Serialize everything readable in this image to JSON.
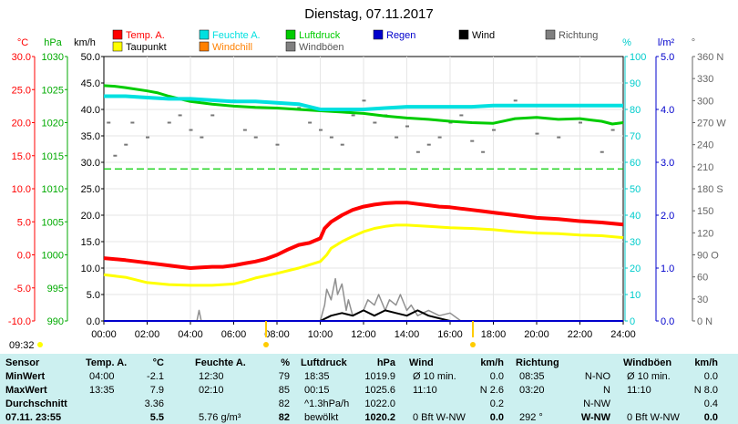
{
  "chart_data": {
    "type": "line",
    "title": "Dienstag, 07.11.2017",
    "time_label": "09:32",
    "x_ticks": [
      "00:00",
      "02:00",
      "04:00",
      "06:00",
      "08:00",
      "10:00",
      "12:00",
      "14:00",
      "16:00",
      "18:00",
      "20:00",
      "22:00",
      "24:00"
    ],
    "xlim_hours": [
      0,
      24
    ],
    "axes": {
      "temp": {
        "unit": "°C",
        "ticks": [
          "30.0",
          "25.0",
          "20.0",
          "15.0",
          "10.0",
          "5.0",
          "0.0",
          "-5.0",
          "-10.0"
        ],
        "range": [
          -10,
          30
        ],
        "color": "#ff0000"
      },
      "pressure": {
        "unit": "hPa",
        "ticks": [
          "1030",
          "1025",
          "1020",
          "1015",
          "1010",
          "1005",
          "1000",
          "995",
          "990"
        ],
        "range": [
          990,
          1030
        ],
        "color": "#00aa00"
      },
      "wind": {
        "unit": "km/h",
        "ticks": [
          "50.0",
          "45.0",
          "40.0",
          "35.0",
          "30.0",
          "25.0",
          "20.0",
          "15.0",
          "10.0",
          "5.0",
          "0.0"
        ],
        "range": [
          0,
          50
        ],
        "color": "#000000"
      },
      "humidity": {
        "unit": "%",
        "ticks": [
          "100",
          "90",
          "80",
          "70",
          "60",
          "50",
          "40",
          "30",
          "20",
          "10",
          "0"
        ],
        "range": [
          0,
          100
        ],
        "color": "#00cccc"
      },
      "rain": {
        "unit": "l/m²",
        "ticks": [
          "5.0",
          "4.0",
          "3.0",
          "2.0",
          "1.0",
          "0.0"
        ],
        "range": [
          0,
          5
        ],
        "color": "#0000cc"
      },
      "direction": {
        "unit": "°",
        "ticks": [
          "360 N",
          "330",
          "300",
          "270 W",
          "240",
          "210",
          "180 S",
          "150",
          "120",
          "90 O",
          "60",
          "30",
          "0 N"
        ],
        "range": [
          0,
          360
        ],
        "color": "#666666"
      }
    },
    "legend": [
      {
        "name": "Temp. A.",
        "color": "#ff0000"
      },
      {
        "name": "Feuchte A.",
        "color": "#00e0e0"
      },
      {
        "name": "Luftdruck",
        "color": "#00cc00"
      },
      {
        "name": "Regen",
        "color": "#0000cc"
      },
      {
        "name": "Wind",
        "color": "#000000"
      },
      {
        "name": "Richtung",
        "color": "#808080"
      },
      {
        "name": "Taupunkt",
        "color": "#ffff00"
      },
      {
        "name": "Windchill",
        "color": "#ff8000"
      },
      {
        "name": "Windböen",
        "color": "#808080"
      }
    ],
    "series": [
      {
        "name": "Temp. A.",
        "axis": "temp",
        "color": "#ff0000",
        "width": 4,
        "points": [
          [
            0,
            -0.5
          ],
          [
            1,
            -0.8
          ],
          [
            2,
            -1.2
          ],
          [
            3,
            -1.6
          ],
          [
            3.5,
            -1.8
          ],
          [
            4,
            -2.0
          ],
          [
            4.5,
            -1.9
          ],
          [
            5,
            -1.8
          ],
          [
            5.5,
            -1.8
          ],
          [
            6,
            -1.6
          ],
          [
            6.5,
            -1.3
          ],
          [
            7,
            -1.0
          ],
          [
            7.5,
            -0.6
          ],
          [
            8,
            0.0
          ],
          [
            8.5,
            0.8
          ],
          [
            9,
            1.5
          ],
          [
            9.5,
            1.8
          ],
          [
            10,
            2.5
          ],
          [
            10.2,
            4.0
          ],
          [
            10.5,
            5.0
          ],
          [
            11,
            6.0
          ],
          [
            11.5,
            6.8
          ],
          [
            12,
            7.3
          ],
          [
            12.5,
            7.6
          ],
          [
            13,
            7.8
          ],
          [
            13.5,
            7.9
          ],
          [
            14,
            7.9
          ],
          [
            14.5,
            7.7
          ],
          [
            15,
            7.5
          ],
          [
            15.5,
            7.3
          ],
          [
            16,
            7.2
          ],
          [
            16.5,
            7.0
          ],
          [
            17,
            6.8
          ],
          [
            17.5,
            6.6
          ],
          [
            18,
            6.4
          ],
          [
            19,
            6.0
          ],
          [
            20,
            5.6
          ],
          [
            21,
            5.4
          ],
          [
            22,
            5.1
          ],
          [
            23,
            4.9
          ],
          [
            24,
            4.6
          ]
        ]
      },
      {
        "name": "Taupunkt",
        "axis": "temp",
        "color": "#ffff00",
        "width": 3,
        "points": [
          [
            0,
            -3.0
          ],
          [
            1,
            -3.4
          ],
          [
            2,
            -4.2
          ],
          [
            3,
            -4.5
          ],
          [
            4,
            -4.6
          ],
          [
            5,
            -4.6
          ],
          [
            6,
            -4.4
          ],
          [
            6.5,
            -4.0
          ],
          [
            7,
            -3.5
          ],
          [
            8,
            -2.8
          ],
          [
            9,
            -2.0
          ],
          [
            9.5,
            -1.5
          ],
          [
            10,
            -1.0
          ],
          [
            10.3,
            0.0
          ],
          [
            10.5,
            1.0
          ],
          [
            11,
            2.0
          ],
          [
            11.5,
            2.8
          ],
          [
            12,
            3.5
          ],
          [
            12.5,
            4.0
          ],
          [
            13,
            4.3
          ],
          [
            13.5,
            4.5
          ],
          [
            14,
            4.5
          ],
          [
            15,
            4.3
          ],
          [
            16,
            4.1
          ],
          [
            17,
            4.0
          ],
          [
            18,
            3.8
          ],
          [
            19,
            3.5
          ],
          [
            20,
            3.3
          ],
          [
            21,
            3.2
          ],
          [
            22,
            3.0
          ],
          [
            23,
            2.9
          ],
          [
            24,
            2.6
          ]
        ]
      },
      {
        "name": "Luftdruck",
        "axis": "pressure",
        "color": "#00cc00",
        "width": 3,
        "points": [
          [
            0,
            1025.6
          ],
          [
            0.5,
            1025.5
          ],
          [
            1,
            1025.3
          ],
          [
            2,
            1024.8
          ],
          [
            2.5,
            1024.5
          ],
          [
            3,
            1024.0
          ],
          [
            4,
            1023.2
          ],
          [
            5,
            1022.8
          ],
          [
            6,
            1022.5
          ],
          [
            7,
            1022.3
          ],
          [
            8,
            1022.2
          ],
          [
            9,
            1022.0
          ],
          [
            10,
            1021.8
          ],
          [
            11,
            1021.6
          ],
          [
            12,
            1021.4
          ],
          [
            13,
            1021.0
          ],
          [
            14,
            1020.7
          ],
          [
            15,
            1020.5
          ],
          [
            16,
            1020.2
          ],
          [
            17,
            1020.0
          ],
          [
            18,
            1019.9
          ],
          [
            19,
            1020.6
          ],
          [
            20,
            1020.8
          ],
          [
            21,
            1020.5
          ],
          [
            22,
            1020.6
          ],
          [
            22.5,
            1020.4
          ],
          [
            23,
            1020.2
          ],
          [
            23.5,
            1019.8
          ],
          [
            24,
            1020.0
          ]
        ]
      },
      {
        "name": "Feuchte A.",
        "axis": "humidity",
        "color": "#00e0e0",
        "width": 4,
        "points": [
          [
            0,
            85
          ],
          [
            1,
            85
          ],
          [
            2,
            84.5
          ],
          [
            3,
            84
          ],
          [
            4,
            84
          ],
          [
            5,
            83.5
          ],
          [
            6,
            83
          ],
          [
            7,
            83
          ],
          [
            8,
            82.5
          ],
          [
            9,
            82
          ],
          [
            9.5,
            81
          ],
          [
            10,
            80
          ],
          [
            11,
            80
          ],
          [
            12,
            80
          ],
          [
            13,
            80.5
          ],
          [
            14,
            81
          ],
          [
            15,
            81
          ],
          [
            16,
            81
          ],
          [
            17,
            81
          ],
          [
            18,
            81.5
          ],
          [
            19,
            81.5
          ],
          [
            20,
            81.5
          ],
          [
            21,
            81.5
          ],
          [
            22,
            81.5
          ],
          [
            23,
            81.5
          ],
          [
            24,
            81.5
          ]
        ]
      },
      {
        "name": "Windböen",
        "axis": "wind",
        "color": "#909090",
        "width": 1.5,
        "points": [
          [
            4.3,
            0
          ],
          [
            4.4,
            2
          ],
          [
            4.5,
            0
          ],
          [
            10,
            0
          ],
          [
            10.2,
            3
          ],
          [
            10.3,
            6
          ],
          [
            10.5,
            4
          ],
          [
            10.7,
            8
          ],
          [
            10.8,
            5
          ],
          [
            11,
            7
          ],
          [
            11.2,
            2
          ],
          [
            11.3,
            4
          ],
          [
            11.5,
            1
          ],
          [
            12,
            2
          ],
          [
            12.2,
            4
          ],
          [
            12.5,
            3
          ],
          [
            12.7,
            5
          ],
          [
            13,
            2
          ],
          [
            13.2,
            4
          ],
          [
            13.5,
            3
          ],
          [
            13.7,
            5
          ],
          [
            14,
            2
          ],
          [
            14.2,
            3
          ],
          [
            14.5,
            1
          ],
          [
            15,
            2
          ],
          [
            15.5,
            1
          ],
          [
            16,
            1.5
          ],
          [
            16.5,
            0
          ]
        ]
      },
      {
        "name": "Wind",
        "axis": "wind",
        "color": "#000000",
        "width": 2,
        "points": [
          [
            10,
            0
          ],
          [
            10.5,
            1
          ],
          [
            11,
            1.5
          ],
          [
            11.5,
            1
          ],
          [
            12,
            2
          ],
          [
            12.5,
            1
          ],
          [
            13,
            2
          ],
          [
            13.5,
            1.5
          ],
          [
            14,
            1
          ],
          [
            14.5,
            2
          ],
          [
            15,
            1
          ],
          [
            15.5,
            0.5
          ],
          [
            16,
            0
          ],
          [
            24,
            0
          ]
        ]
      },
      {
        "name": "Regen",
        "axis": "rain",
        "color": "#0000cc",
        "width": 2,
        "points": [
          [
            0,
            0
          ],
          [
            24,
            0
          ]
        ]
      }
    ],
    "reference": {
      "name": "Luftdruck",
      "axis": "pressure",
      "value": 1013.0,
      "color": "#00cc00"
    },
    "direction_points": [
      [
        0.2,
        270
      ],
      [
        0.5,
        225
      ],
      [
        1.0,
        240
      ],
      [
        1.3,
        270
      ],
      [
        2.0,
        250
      ],
      [
        3.0,
        270
      ],
      [
        3.5,
        280
      ],
      [
        3.8,
        300
      ],
      [
        4.0,
        260
      ],
      [
        4.5,
        250
      ],
      [
        5.0,
        280
      ],
      [
        6.0,
        300
      ],
      [
        6.5,
        260
      ],
      [
        7.0,
        250
      ],
      [
        8.0,
        240
      ],
      [
        9.0,
        290
      ],
      [
        9.5,
        270
      ],
      [
        10.0,
        260
      ],
      [
        10.5,
        250
      ],
      [
        11.0,
        240
      ],
      [
        11.5,
        280
      ],
      [
        12.0,
        300
      ],
      [
        12.5,
        270
      ],
      [
        13.0,
        280
      ],
      [
        13.5,
        250
      ],
      [
        14.0,
        265
      ],
      [
        14.5,
        230
      ],
      [
        15.0,
        240
      ],
      [
        15.5,
        250
      ],
      [
        16.0,
        270
      ],
      [
        16.5,
        280
      ],
      [
        17.0,
        245
      ],
      [
        17.5,
        230
      ],
      [
        18.0,
        260
      ],
      [
        19.0,
        300
      ],
      [
        20.0,
        255
      ],
      [
        21.0,
        250
      ],
      [
        22.0,
        270
      ],
      [
        23.0,
        230
      ],
      [
        23.5,
        260
      ]
    ]
  },
  "table": {
    "headers": [
      {
        "label": "Sensor",
        "unit": ""
      },
      {
        "label": "Temp. A.",
        "unit": "°C"
      },
      {
        "label": "Feuchte A.",
        "unit": "%"
      },
      {
        "label": "Luftdruck",
        "unit": "hPa"
      },
      {
        "label": "Wind",
        "unit": "km/h"
      },
      {
        "label": "Richtung",
        "unit": ""
      },
      {
        "label": "Windböen",
        "unit": "km/h"
      }
    ],
    "rows": [
      {
        "label": "MinWert",
        "cells": [
          [
            "04:00",
            "-2.1"
          ],
          [
            "12:30",
            "79"
          ],
          [
            "18:35",
            "1019.9"
          ],
          [
            "Ø 10 min.",
            "0.0"
          ],
          [
            "08:35",
            "N-NO"
          ],
          [
            "Ø 10 min.",
            "0.0"
          ]
        ]
      },
      {
        "label": "MaxWert",
        "cells": [
          [
            "13:35",
            "7.9"
          ],
          [
            "02:10",
            "85"
          ],
          [
            "00:15",
            "1025.6"
          ],
          [
            "11:10",
            "N 2.6"
          ],
          [
            "03:20",
            "N"
          ],
          [
            "11:10",
            "N 8.0"
          ]
        ]
      },
      {
        "label": "Durchschnitt",
        "cells": [
          [
            "",
            "3.36"
          ],
          [
            "",
            "82"
          ],
          [
            "^1.3hPa/h",
            "1022.0"
          ],
          [
            "",
            "0.2"
          ],
          [
            "",
            "N-NW"
          ],
          [
            "",
            "0.4"
          ]
        ]
      },
      {
        "label": "07.11. 23:55",
        "cells": [
          [
            "",
            "5.5"
          ],
          [
            "5.76 g/m³",
            "82"
          ],
          [
            "bewölkt",
            "1020.2"
          ],
          [
            "0 Bft W-NW",
            "0.0"
          ],
          [
            "292 °",
            "W-NW"
          ],
          [
            "0 Bft W-NW",
            "0.0"
          ]
        ]
      }
    ]
  }
}
